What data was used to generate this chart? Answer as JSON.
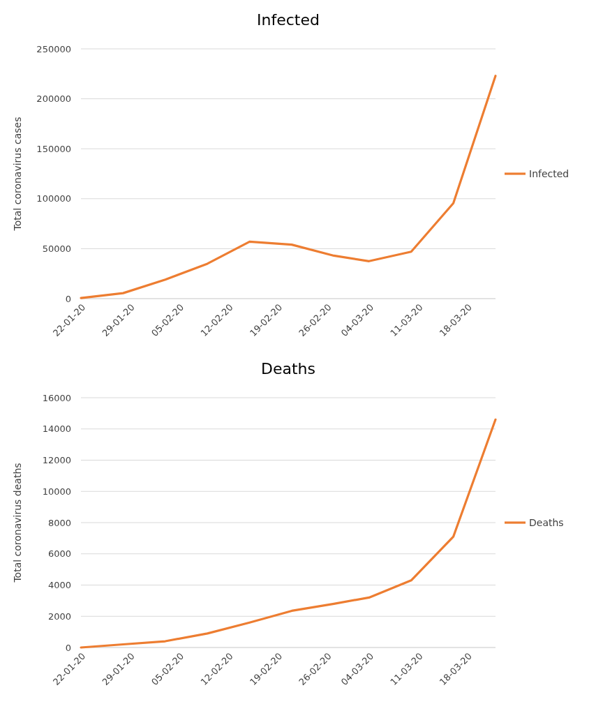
{
  "chart_data": [
    {
      "type": "line",
      "title": "Infected",
      "ylabel": "Total coronavirus cases",
      "x": [
        "--01-22",
        "--01-28",
        "--02-03",
        "--02-09",
        "--02-15",
        "--02-21",
        "--02-27",
        "--03-04",
        "--03-10",
        "--03-16",
        "--03-22"
      ],
      "series": [
        {
          "name": "Infected",
          "color": "#ed7d31",
          "values": [
            600,
            5500,
            19000,
            35000,
            57000,
            54000,
            43000,
            37500,
            47000,
            95500,
            223000
          ]
        }
      ],
      "xlim": [
        "--01-22",
        "--03-22"
      ],
      "xticks": [
        {
          "value": "--01-22",
          "label": "22-01-20"
        },
        {
          "value": "--01-29",
          "label": "29-01-20"
        },
        {
          "value": "--02-05",
          "label": "05-02-20"
        },
        {
          "value": "--02-12",
          "label": "12-02-20"
        },
        {
          "value": "--02-19",
          "label": "19-02-20"
        },
        {
          "value": "--02-26",
          "label": "26-02-20"
        },
        {
          "value": "--03-04",
          "label": "04-03-20"
        },
        {
          "value": "--03-11",
          "label": "11-03-20"
        },
        {
          "value": "--03-18",
          "label": "18-03-20"
        }
      ],
      "ylim": [
        0,
        250000
      ],
      "yticks": [
        0,
        50000,
        100000,
        150000,
        200000,
        250000
      ],
      "grid": "y",
      "legend": "right",
      "marker": "none",
      "line_style": "solid"
    },
    {
      "type": "line",
      "title": "Deaths",
      "ylabel": "Total coronavirus deaths",
      "x": [
        "--01-22",
        "--01-28",
        "--02-03",
        "--02-09",
        "--02-15",
        "--02-21",
        "--02-27",
        "--03-04",
        "--03-10",
        "--03-16",
        "--03-22"
      ],
      "series": [
        {
          "name": "Deaths",
          "color": "#ed7d31",
          "values": [
            0,
            200,
            400,
            900,
            1600,
            2350,
            2800,
            3200,
            4300,
            7100,
            14600
          ]
        }
      ],
      "xlim": [
        "--01-22",
        "--03-22"
      ],
      "xticks": [
        {
          "value": "--01-22",
          "label": "22-01-20"
        },
        {
          "value": "--01-29",
          "label": "29-01-20"
        },
        {
          "value": "--02-05",
          "label": "05-02-20"
        },
        {
          "value": "--02-12",
          "label": "12-02-20"
        },
        {
          "value": "--02-19",
          "label": "19-02-20"
        },
        {
          "value": "--02-26",
          "label": "26-02-20"
        },
        {
          "value": "--03-04",
          "label": "04-03-20"
        },
        {
          "value": "--03-11",
          "label": "11-03-20"
        },
        {
          "value": "--03-18",
          "label": "18-03-20"
        }
      ],
      "ylim": [
        0,
        16000
      ],
      "yticks": [
        0,
        2000,
        4000,
        6000,
        8000,
        10000,
        12000,
        14000,
        16000
      ],
      "grid": "y",
      "legend": "right",
      "marker": "none",
      "line_style": "solid"
    }
  ]
}
